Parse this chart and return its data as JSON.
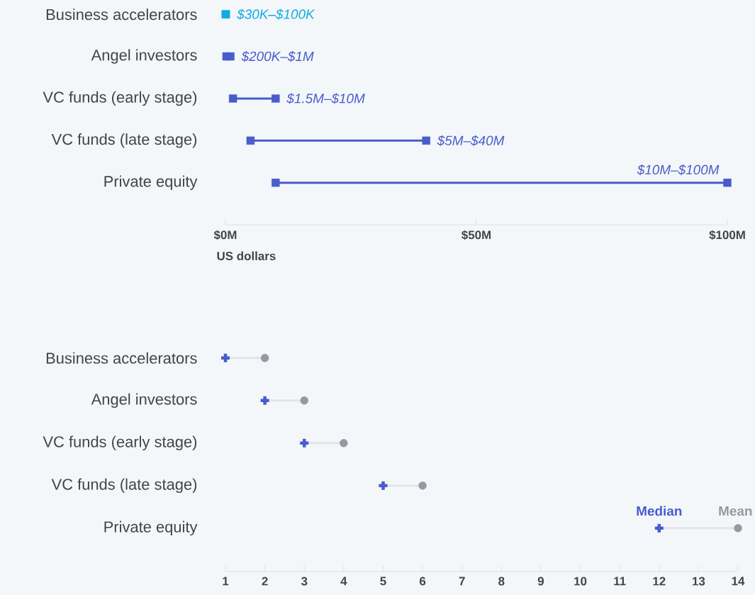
{
  "chart_data": [
    {
      "type": "scatter",
      "orientation": "horizontal",
      "marker": "square",
      "categories": [
        "Business accelerators",
        "Angel investors",
        "VC funds (early stage)",
        "VC funds (late stage)",
        "Private equity"
      ],
      "series": [
        {
          "colors": [
            "#12abe0",
            "#4a5bcc",
            "#4a5bcc",
            "#4a5bcc",
            "#4a5bcc"
          ],
          "values": [
            0.03,
            0.2,
            1.5,
            5,
            10
          ]
        },
        {
          "colors": [
            "#12abe0",
            "#4a5bcc",
            "#4a5bcc",
            "#4a5bcc",
            "#4a5bcc"
          ],
          "values": [
            0.1,
            1,
            10,
            40,
            100
          ]
        }
      ],
      "annotations": [
        {
          "text": "$30K–$100K",
          "x": 0.1,
          "y": "Business accelerators"
        },
        {
          "text": "$200K–$1M",
          "x": 1,
          "y": "Angel investors"
        },
        {
          "text": "$1.5M–$10M",
          "x": 10,
          "y": "VC funds (early stage)"
        },
        {
          "text": "$5M–$40M",
          "x": 40,
          "y": "VC funds (late stage)"
        },
        {
          "text": "$10M–$100M",
          "x": 100,
          "y": "Private equity"
        }
      ],
      "xlim": [
        0,
        100
      ],
      "xticks": [
        {
          "value": 0,
          "label": "$0M"
        },
        {
          "value": 50,
          "label": "$50M"
        },
        {
          "value": 100,
          "label": "$100M"
        }
      ],
      "xlabel": "US dollars"
    },
    {
      "type": "scatter",
      "orientation": "horizontal",
      "legend": "bottom right",
      "categories": [
        "Business accelerators",
        "Angel investors",
        "VC funds (early stage)",
        "VC funds (late stage)",
        "Private equity"
      ],
      "series": [
        {
          "name": "Median",
          "color": "#4a5bcc",
          "marker": "cross",
          "values": [
            1,
            2,
            3,
            5,
            12
          ]
        },
        {
          "name": "Mean",
          "color": "#939aa0",
          "marker": "circle",
          "values": [
            2,
            3,
            4,
            6,
            14
          ]
        }
      ],
      "xlim": [
        1,
        14
      ],
      "xticks": [
        1,
        2,
        3,
        4,
        5,
        6,
        7,
        8,
        9,
        10,
        11,
        12,
        13,
        14
      ]
    }
  ]
}
